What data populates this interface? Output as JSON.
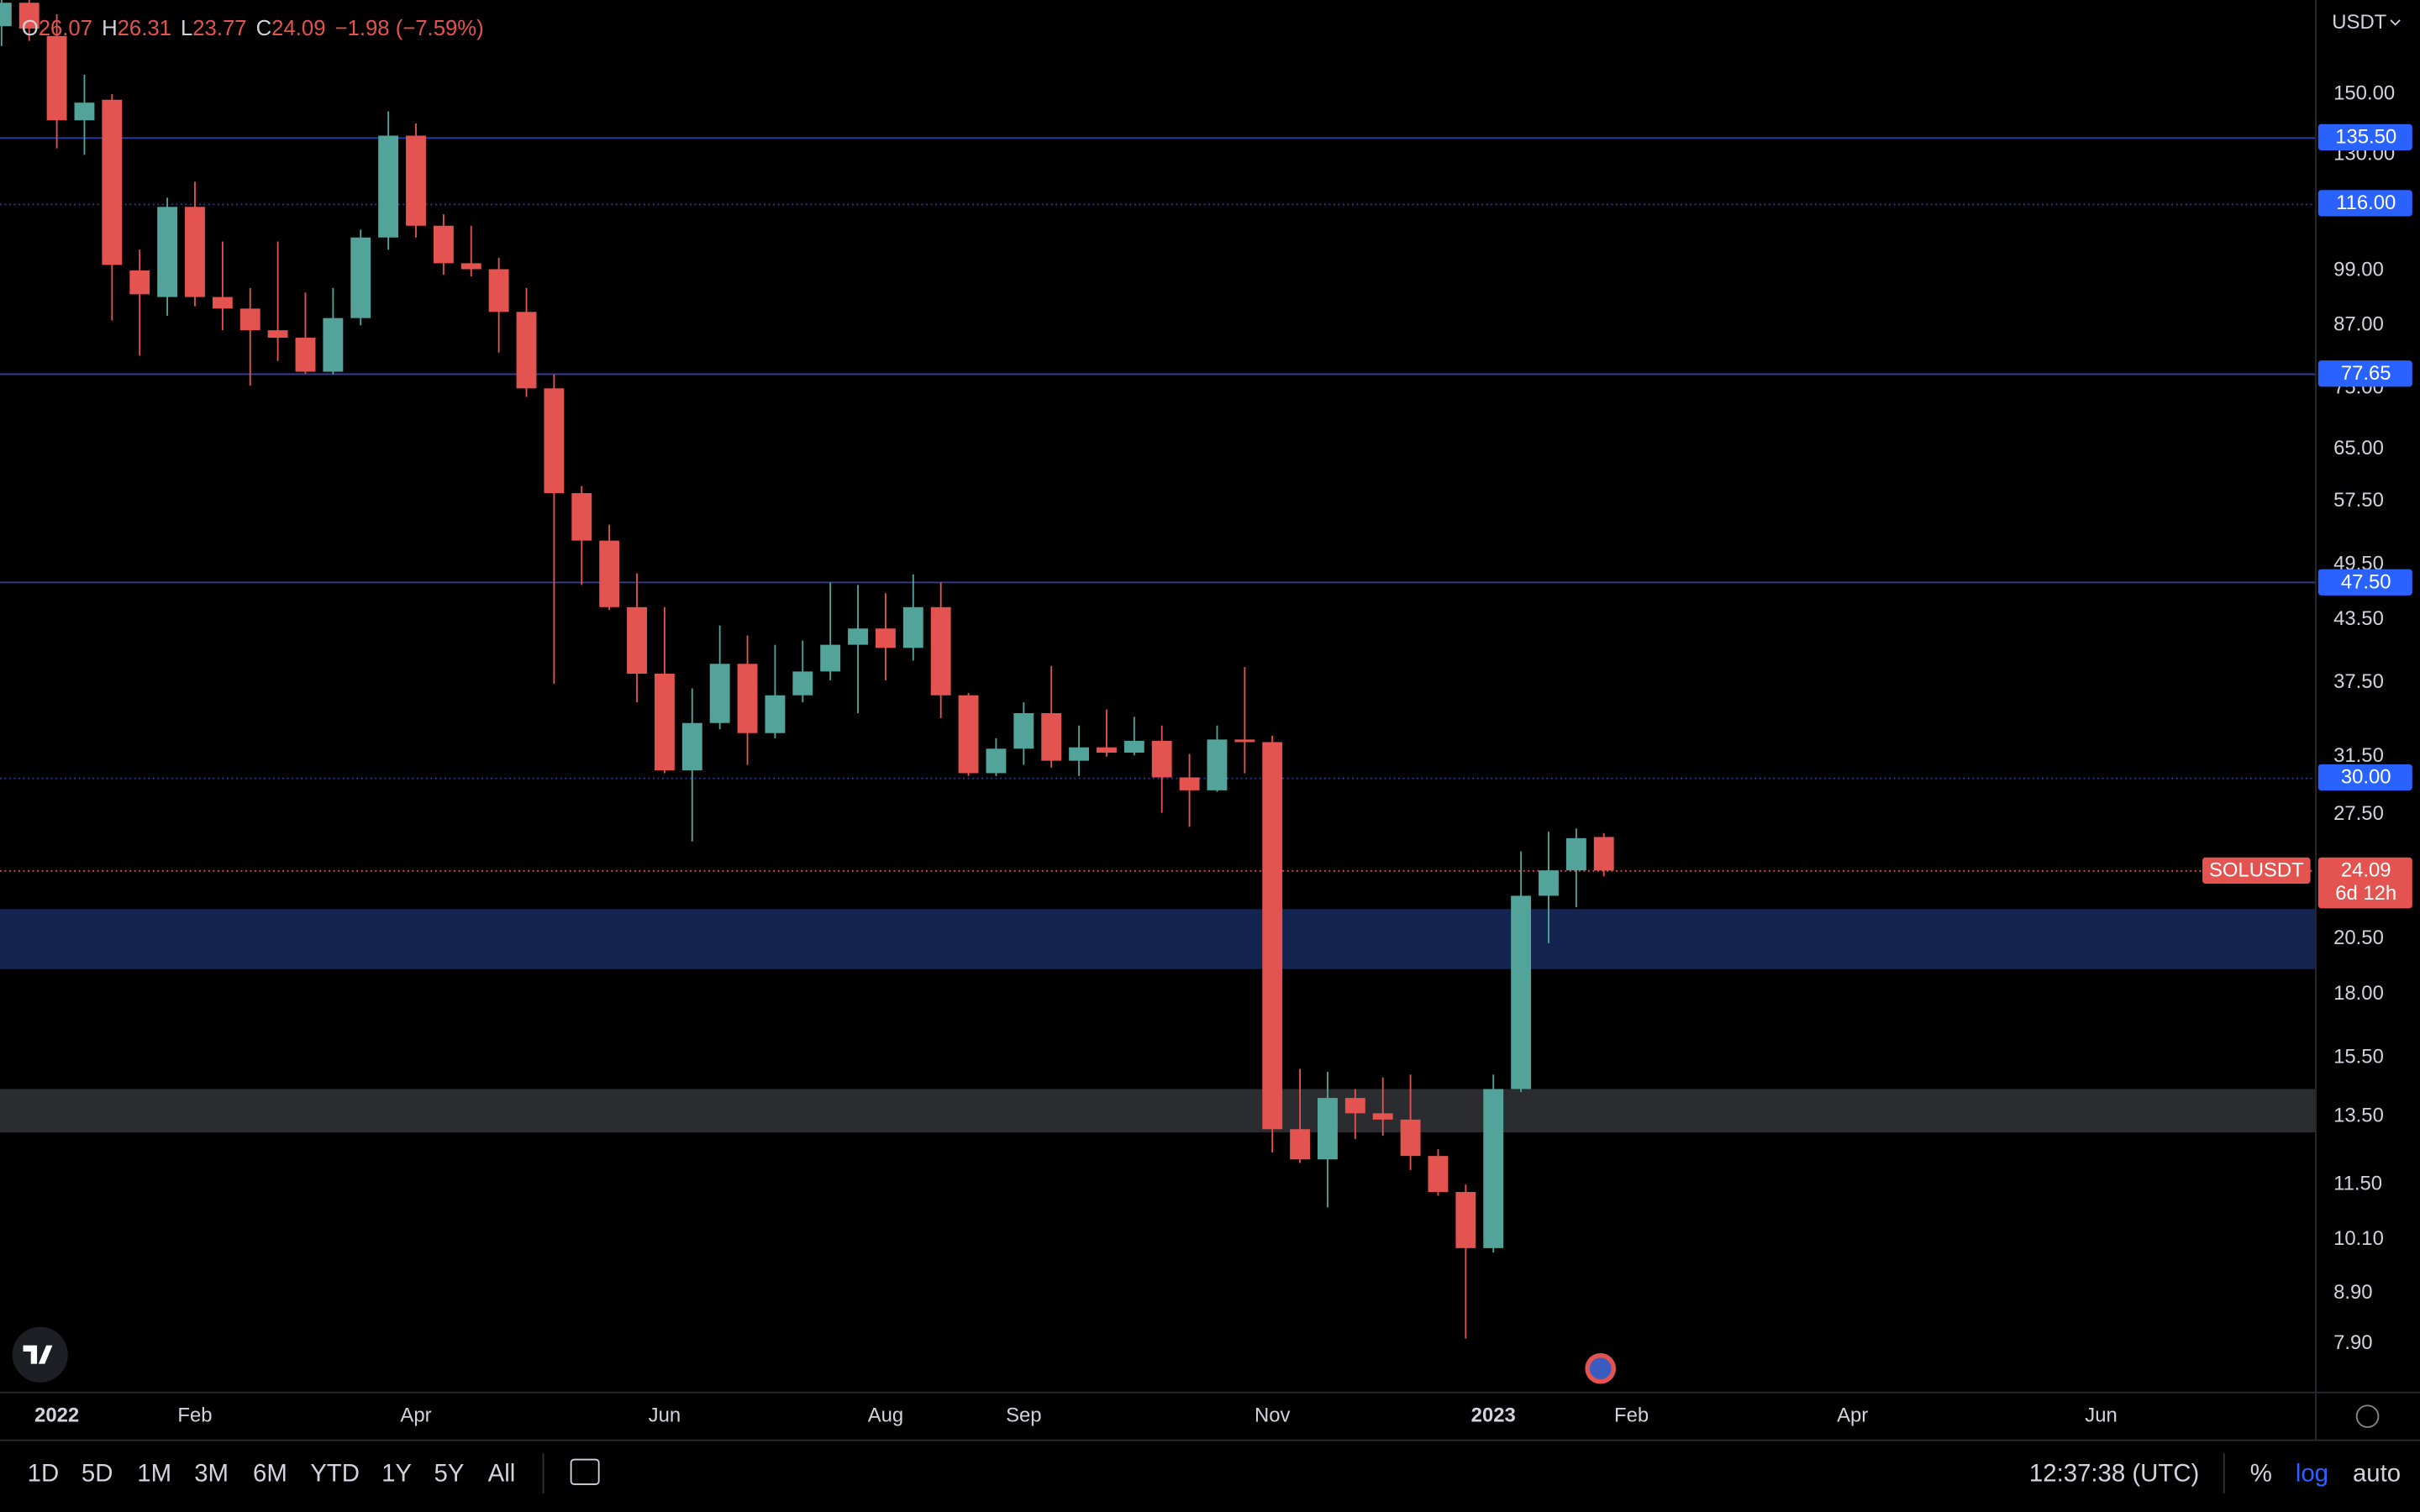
{
  "chart_data": {
    "type": "candlestick",
    "categories": [
      null,
      null,
      "2022",
      null,
      null,
      null,
      null,
      "Feb",
      null,
      null,
      null,
      null,
      null,
      null,
      null,
      "Apr",
      null,
      null,
      null,
      null,
      null,
      null,
      null,
      null,
      "Jun",
      null,
      null,
      null,
      null,
      null,
      null,
      null,
      "Aug",
      null,
      null,
      null,
      null,
      "Sep",
      null,
      null,
      null,
      null,
      null,
      null,
      null,
      null,
      "Nov",
      null,
      null,
      null,
      null,
      null,
      null,
      null,
      "2023",
      null,
      null,
      null,
      null,
      "Feb",
      null,
      null,
      null,
      null,
      null,
      null,
      null,
      "Apr",
      null,
      null,
      null,
      null,
      null,
      null,
      null,
      null,
      "Jun",
      null,
      null,
      null,
      null,
      null,
      null,
      null
    ],
    "open": [
      176,
      186,
      172,
      141,
      148,
      99,
      93,
      115,
      93,
      90.5,
      86,
      84.5,
      78,
      88.5,
      107,
      136,
      110,
      100.7,
      99.3,
      89.8,
      75,
      58.6,
      52.4,
      44.8,
      38.3,
      30.5,
      34.1,
      39.2,
      33.3,
      36.4,
      38.5,
      41,
      42.6,
      40.7,
      44.8,
      36.4,
      30.3,
      32.1,
      34.9,
      31.2,
      32.2,
      31.8,
      32.7,
      30,
      29.1,
      32.8,
      32.6,
      13.1,
      12.2,
      14.1,
      13.6,
      13.4,
      12.3,
      11.3,
      9.9,
      14.4,
      22.7,
      24.1,
      26.07,
      null,
      null,
      null,
      null,
      null,
      null,
      null,
      null,
      null,
      null,
      null,
      null,
      null,
      null,
      null,
      null,
      null,
      null,
      null,
      null,
      null,
      null,
      null,
      null,
      null
    ],
    "high": [
      195,
      190,
      181,
      157,
      150,
      104,
      117.5,
      122,
      106,
      95,
      106,
      94,
      95,
      109,
      144,
      140,
      113,
      110,
      102,
      95,
      77.5,
      59.6,
      54.4,
      48.5,
      44.8,
      37,
      42.9,
      41.9,
      41,
      41.4,
      47.5,
      47.2,
      46.3,
      48.4,
      47.5,
      36.6,
      32.9,
      35.8,
      39,
      33.9,
      35.2,
      34.6,
      33.9,
      31.7,
      33.9,
      38.9,
      33.1,
      15.1,
      15,
      14.4,
      14.8,
      14.9,
      12.5,
      11.5,
      14.9,
      25.2,
      26.4,
      26.6,
      26.31,
      null,
      null,
      null,
      null,
      null,
      null,
      null,
      null,
      null,
      null,
      null,
      null,
      null,
      null,
      null,
      null,
      null,
      null,
      null,
      null,
      null,
      null,
      null,
      null,
      null
    ],
    "low": [
      168,
      170,
      132,
      130,
      88,
      81,
      89,
      91,
      86,
      75.5,
      80,
      77.6,
      77.5,
      87,
      104,
      107,
      98,
      97.6,
      81.6,
      73.5,
      37.4,
      47.2,
      44.5,
      35.8,
      30.3,
      25.8,
      33.6,
      30.9,
      32.9,
      35.8,
      37.7,
      34.9,
      37.7,
      39.5,
      34.5,
      30.1,
      30.1,
      30.9,
      30.7,
      30.1,
      31.5,
      31.6,
      27.6,
      26.7,
      29,
      30.3,
      12.4,
      12.1,
      10.9,
      12.8,
      12.9,
      11.9,
      11.2,
      8.0,
      9.8,
      14.3,
      20.3,
      22.1,
      23.77,
      null,
      null,
      null,
      null,
      null,
      null,
      null,
      null,
      null,
      null,
      null,
      null,
      null,
      null,
      null,
      null,
      null,
      null,
      null,
      null,
      null,
      null,
      null,
      null,
      null
    ],
    "close": [
      186,
      175,
      141,
      147,
      100.3,
      93.6,
      115,
      93,
      90.5,
      86,
      84.5,
      78,
      88.5,
      107,
      136,
      110,
      100.7,
      99.3,
      89.8,
      75,
      58.6,
      52.4,
      44.8,
      38.3,
      30.5,
      34.1,
      39.2,
      33.3,
      36.4,
      38.5,
      41,
      42.6,
      40.7,
      44.8,
      36.4,
      30.3,
      32.1,
      34.9,
      31.2,
      32.2,
      31.8,
      32.7,
      30,
      29.1,
      32.8,
      32.6,
      13.1,
      12.2,
      14.1,
      13.6,
      13.4,
      12.3,
      11.3,
      9.9,
      14.4,
      22.7,
      24.1,
      26,
      24.09,
      null,
      null,
      null,
      null,
      null,
      null,
      null,
      null,
      null,
      null,
      null,
      null,
      null,
      null,
      null,
      null,
      null,
      null,
      null,
      null,
      null,
      null,
      null,
      null,
      null
    ],
    "up_color": "#52a49a",
    "down_color": "#e3534f",
    "log_scale": true,
    "ylim": [
      7.06,
      187.2
    ],
    "yticks": [
      {
        "value": 150,
        "label": "150.00"
      },
      {
        "value": 130,
        "label": "130.00"
      },
      {
        "value": 99,
        "label": "99.00"
      },
      {
        "value": 87,
        "label": "87.00"
      },
      {
        "value": 75,
        "label": "75.00"
      },
      {
        "value": 65,
        "label": "65.00"
      },
      {
        "value": 57.5,
        "label": "57.50"
      },
      {
        "value": 49.5,
        "label": "49.50"
      },
      {
        "value": 43.5,
        "label": "43.50"
      },
      {
        "value": 37.5,
        "label": "37.50"
      },
      {
        "value": 31.5,
        "label": "31.50"
      },
      {
        "value": 27.5,
        "label": "27.50"
      },
      {
        "value": 20.5,
        "label": "20.50"
      },
      {
        "value": 18,
        "label": "18.00"
      },
      {
        "value": 15.5,
        "label": "15.50"
      },
      {
        "value": 13.5,
        "label": "13.50"
      },
      {
        "value": 11.5,
        "label": "11.50"
      },
      {
        "value": 10.1,
        "label": "10.10"
      },
      {
        "value": 8.9,
        "label": "8.90"
      },
      {
        "value": 7.9,
        "label": "7.90"
      }
    ],
    "grid": false,
    "levels": [
      {
        "value": 135.5,
        "label": "135.50",
        "dashed": false
      },
      {
        "value": 116,
        "label": "116.00",
        "dashed": true
      },
      {
        "value": 77.65,
        "label": "77.65",
        "dashed": false
      },
      {
        "value": 47.5,
        "label": "47.50",
        "dashed": false
      },
      {
        "value": 30,
        "label": "30.00",
        "dashed": true
      }
    ],
    "level_color": "#2f3fa8",
    "tag_color": "#2962ff",
    "zones": [
      {
        "low": 19.1,
        "high": 22.0,
        "color": "#132451"
      },
      {
        "low": 13.0,
        "high": 14.4,
        "color": "#2b2c30"
      }
    ],
    "last_price": {
      "symbol": "SOLUSDT",
      "value": 24.09,
      "countdown": "6d 12h"
    },
    "currency": "USDT"
  },
  "header": {
    "items": [
      {
        "key": "O",
        "value": "26.07"
      },
      {
        "key": "H",
        "value": "26.31"
      },
      {
        "key": "L",
        "value": "23.77"
      },
      {
        "key": "C",
        "value": "24.09"
      }
    ],
    "change": "−1.98 (−7.59%)"
  },
  "toolbar": {
    "intervals": [
      "1D",
      "5D",
      "1M",
      "3M",
      "6M",
      "YTD",
      "1Y",
      "5Y",
      "All"
    ],
    "time": "12:37:38 (UTC)",
    "scale_buttons": [
      "%",
      "log",
      "auto"
    ]
  }
}
